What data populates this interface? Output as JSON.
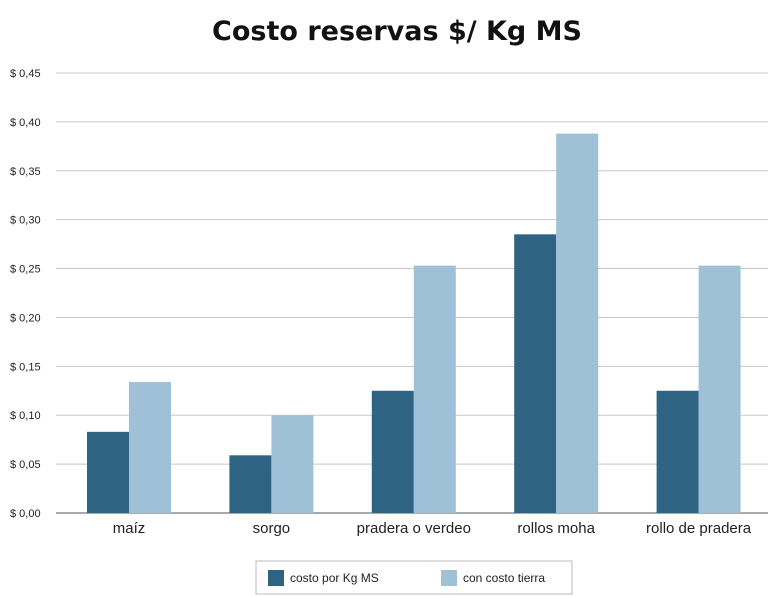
{
  "chart_data": {
    "type": "bar",
    "title": "Costo reservas $/ Kg MS",
    "xlabel": "",
    "ylabel": "",
    "categories": [
      "maíz",
      "sorgo",
      "pradera o verdeo",
      "rollos moha",
      "rollo de pradera"
    ],
    "series": [
      {
        "name": "costo por Kg MS",
        "color": "#2e6383",
        "values": [
          0.083,
          0.059,
          0.125,
          0.285,
          0.125
        ]
      },
      {
        "name": "con costo tierra",
        "color": "#9fc1d8",
        "values": [
          0.134,
          0.1,
          0.253,
          0.388,
          0.253
        ]
      }
    ],
    "ylim": [
      0,
      0.45
    ],
    "yticks": [
      0,
      0.05,
      0.1,
      0.15,
      0.2,
      0.25,
      0.3,
      0.35,
      0.4,
      0.45
    ],
    "ytick_labels": [
      "$ 0,00",
      "$ 0,05",
      "$ 0,10",
      "$ 0,15",
      "$ 0,20",
      "$ 0,25",
      "$ 0,30",
      "$ 0,35",
      "$ 0,40",
      "$ 0,45"
    ],
    "grid": true,
    "legend_position": "bottom"
  }
}
